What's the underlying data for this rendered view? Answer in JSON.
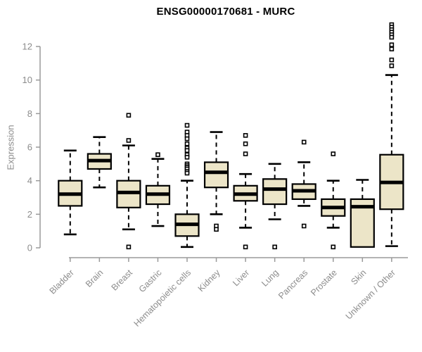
{
  "chart": {
    "title": "ENSG00000170681 - MURC",
    "ylabel": "Expression"
  },
  "colors": {
    "background": "#ffffff",
    "box_fill": "#ece5c8",
    "box_border": "#000000",
    "median": "#000000",
    "whisker": "#000000",
    "axis": "#9a9a9a",
    "tick_label": "#8c8c8c",
    "title": "#000000"
  },
  "chart_data": {
    "type": "boxplot",
    "title": "ENSG00000170681 - MURC",
    "xlabel": "",
    "ylabel": "Expression",
    "ylim": [
      0,
      12
    ],
    "yticks": [
      0,
      2,
      4,
      6,
      8,
      10,
      12
    ],
    "grid": false,
    "legend": false,
    "categories": [
      "Bladder",
      "Brain",
      "Breast",
      "Gastric",
      "Hematopoietic cells",
      "Kidney",
      "Liver",
      "Lung",
      "Pancreas",
      "Prostate",
      "Skin",
      "Unknown / Other"
    ],
    "series": [
      {
        "category": "Bladder",
        "whisker_low": 0.8,
        "q1": 2.5,
        "median": 3.2,
        "q3": 4.0,
        "whisker_high": 5.8,
        "outliers": []
      },
      {
        "category": "Brain",
        "whisker_low": 3.6,
        "q1": 4.7,
        "median": 5.2,
        "q3": 5.6,
        "whisker_high": 6.6,
        "outliers": []
      },
      {
        "category": "Breast",
        "whisker_low": 1.1,
        "q1": 2.4,
        "median": 3.3,
        "q3": 4.0,
        "whisker_high": 6.1,
        "outliers": [
          7.9,
          6.4,
          0.05
        ]
      },
      {
        "category": "Gastric",
        "whisker_low": 1.3,
        "q1": 2.6,
        "median": 3.2,
        "q3": 3.7,
        "whisker_high": 5.3,
        "outliers": [
          5.55
        ]
      },
      {
        "category": "Hematopoietic cells",
        "whisker_low": 0.05,
        "q1": 0.7,
        "median": 1.4,
        "q3": 2.0,
        "whisker_high": 4.0,
        "outliers": [
          7.3,
          6.9,
          6.7,
          6.5,
          6.2,
          5.95,
          5.8,
          5.55,
          5.4,
          5.0,
          4.9,
          4.8,
          4.7,
          4.55,
          4.45
        ]
      },
      {
        "category": "Kidney",
        "whisker_low": 2.0,
        "q1": 3.6,
        "median": 4.5,
        "q3": 5.1,
        "whisker_high": 6.9,
        "outliers": [
          1.3,
          1.1
        ]
      },
      {
        "category": "Liver",
        "whisker_low": 1.2,
        "q1": 2.8,
        "median": 3.2,
        "q3": 3.7,
        "whisker_high": 4.4,
        "outliers": [
          6.7,
          6.2,
          5.6,
          0.05
        ]
      },
      {
        "category": "Lung",
        "whisker_low": 1.7,
        "q1": 2.6,
        "median": 3.5,
        "q3": 4.1,
        "whisker_high": 5.0,
        "outliers": [
          0.05
        ]
      },
      {
        "category": "Pancreas",
        "whisker_low": 2.5,
        "q1": 2.9,
        "median": 3.4,
        "q3": 3.8,
        "whisker_high": 5.1,
        "outliers": [
          6.3,
          1.3
        ]
      },
      {
        "category": "Prostate",
        "whisker_low": 1.2,
        "q1": 1.9,
        "median": 2.4,
        "q3": 2.9,
        "whisker_high": 4.0,
        "outliers": [
          5.6,
          0.05
        ]
      },
      {
        "category": "Skin",
        "whisker_low": 0.05,
        "q1": 0.05,
        "median": 2.45,
        "q3": 2.9,
        "whisker_high": 4.05,
        "outliers": []
      },
      {
        "category": "Unknown / Other",
        "whisker_low": 0.1,
        "q1": 2.3,
        "median": 3.9,
        "q3": 5.55,
        "whisker_high": 10.3,
        "outliers": [
          13.3,
          13.15,
          13.0,
          12.85,
          12.7,
          12.55,
          12.1,
          11.85,
          11.2,
          10.85
        ]
      }
    ]
  }
}
